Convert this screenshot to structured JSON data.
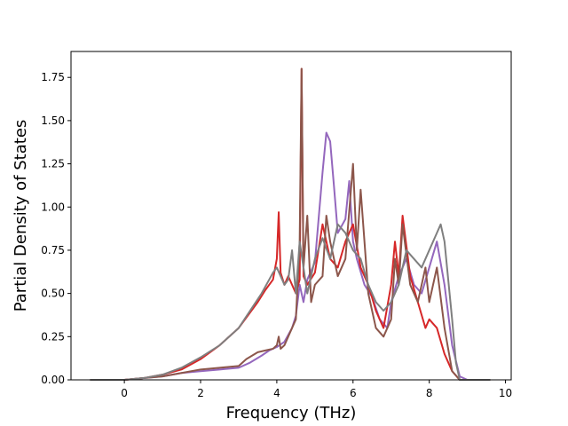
{
  "chart_data": {
    "type": "line",
    "title": "",
    "xlabel": "Frequency (THz)",
    "ylabel": "Partial Density of States",
    "xlim": [
      -1.4,
      10.15
    ],
    "ylim": [
      0.0,
      1.9
    ],
    "xticks": [
      0,
      2,
      4,
      6,
      8,
      10
    ],
    "xtick_labels": [
      "0",
      "2",
      "4",
      "6",
      "8",
      "10"
    ],
    "yticks": [
      0.0,
      0.25,
      0.5,
      0.75,
      1.0,
      1.25,
      1.5,
      1.75
    ],
    "ytick_labels": [
      "0.00",
      "0.25",
      "0.50",
      "0.75",
      "1.00",
      "1.25",
      "1.50",
      "1.75"
    ],
    "grid": false,
    "legend": false,
    "series": [
      {
        "color": "#9467bd",
        "x": [
          -0.9,
          0.0,
          0.5,
          1.0,
          1.5,
          2.0,
          2.5,
          3.0,
          3.3,
          3.6,
          3.8,
          4.0,
          4.2,
          4.4,
          4.5,
          4.6,
          4.7,
          4.8,
          5.0,
          5.2,
          5.3,
          5.4,
          5.5,
          5.6,
          5.8,
          5.9,
          6.0,
          6.1,
          6.3,
          6.5,
          6.7,
          6.9,
          7.0,
          7.2,
          7.4,
          7.6,
          7.8,
          8.0,
          8.2,
          8.4,
          8.6,
          8.8,
          9.0,
          9.6
        ],
        "y": [
          0.0,
          0.0,
          0.01,
          0.02,
          0.04,
          0.05,
          0.06,
          0.07,
          0.1,
          0.14,
          0.17,
          0.19,
          0.22,
          0.3,
          0.37,
          0.55,
          0.45,
          0.58,
          0.68,
          1.2,
          1.43,
          1.38,
          1.12,
          0.85,
          0.93,
          1.15,
          0.8,
          0.7,
          0.55,
          0.48,
          0.35,
          0.3,
          0.45,
          0.6,
          0.7,
          0.55,
          0.5,
          0.65,
          0.8,
          0.55,
          0.2,
          0.02,
          0.0,
          0.0
        ]
      },
      {
        "color": "#d62728",
        "x": [
          -0.9,
          0.0,
          0.5,
          1.0,
          1.5,
          2.0,
          2.5,
          3.0,
          3.2,
          3.5,
          3.7,
          3.9,
          4.0,
          4.05,
          4.1,
          4.2,
          4.3,
          4.4,
          4.5,
          4.6,
          4.65,
          4.7,
          4.8,
          5.0,
          5.2,
          5.4,
          5.6,
          5.8,
          6.0,
          6.2,
          6.4,
          6.6,
          6.8,
          7.0,
          7.1,
          7.2,
          7.3,
          7.5,
          7.7,
          7.9,
          8.0,
          8.2,
          8.4,
          8.6,
          8.8,
          9.6
        ],
        "y": [
          0.0,
          0.0,
          0.01,
          0.03,
          0.06,
          0.12,
          0.2,
          0.3,
          0.36,
          0.45,
          0.52,
          0.58,
          0.7,
          0.97,
          0.62,
          0.55,
          0.6,
          0.55,
          0.5,
          0.58,
          1.8,
          0.6,
          0.55,
          0.62,
          0.9,
          0.7,
          0.65,
          0.8,
          0.9,
          0.65,
          0.55,
          0.4,
          0.3,
          0.55,
          0.8,
          0.6,
          0.95,
          0.6,
          0.45,
          0.3,
          0.35,
          0.3,
          0.15,
          0.05,
          0.0,
          0.0
        ]
      },
      {
        "color": "#8c564b",
        "x": [
          -0.9,
          0.0,
          0.5,
          1.0,
          1.5,
          2.0,
          2.5,
          3.0,
          3.2,
          3.5,
          3.7,
          3.9,
          4.0,
          4.05,
          4.1,
          4.2,
          4.3,
          4.4,
          4.5,
          4.6,
          4.65,
          4.7,
          4.8,
          4.9,
          5.0,
          5.2,
          5.3,
          5.4,
          5.6,
          5.8,
          6.0,
          6.1,
          6.2,
          6.4,
          6.6,
          6.8,
          7.0,
          7.1,
          7.2,
          7.3,
          7.5,
          7.7,
          7.9,
          8.0,
          8.2,
          8.4,
          8.6,
          8.8,
          9.6
        ],
        "y": [
          0.0,
          0.0,
          0.01,
          0.02,
          0.04,
          0.06,
          0.07,
          0.08,
          0.12,
          0.16,
          0.17,
          0.18,
          0.2,
          0.25,
          0.18,
          0.2,
          0.25,
          0.3,
          0.35,
          0.8,
          1.8,
          0.65,
          0.95,
          0.45,
          0.55,
          0.6,
          0.95,
          0.8,
          0.6,
          0.7,
          1.25,
          0.75,
          1.1,
          0.5,
          0.3,
          0.25,
          0.35,
          0.7,
          0.55,
          0.9,
          0.55,
          0.45,
          0.65,
          0.45,
          0.65,
          0.3,
          0.05,
          0.0,
          0.0
        ]
      },
      {
        "color": "#7f7f7f",
        "x": [
          -0.9,
          0.0,
          0.5,
          1.0,
          1.5,
          2.0,
          2.5,
          3.0,
          3.3,
          3.6,
          3.8,
          3.9,
          4.0,
          4.1,
          4.2,
          4.3,
          4.4,
          4.5,
          4.6,
          4.7,
          4.8,
          5.0,
          5.2,
          5.4,
          5.6,
          5.8,
          6.0,
          6.2,
          6.4,
          6.6,
          6.8,
          7.0,
          7.2,
          7.4,
          7.6,
          7.8,
          8.0,
          8.2,
          8.3,
          8.4,
          8.6,
          8.7,
          8.8,
          9.6
        ],
        "y": [
          0.0,
          0.0,
          0.01,
          0.03,
          0.07,
          0.13,
          0.2,
          0.3,
          0.4,
          0.5,
          0.58,
          0.62,
          0.65,
          0.6,
          0.55,
          0.58,
          0.75,
          0.5,
          0.8,
          0.65,
          0.5,
          0.7,
          0.82,
          0.7,
          0.9,
          0.85,
          0.75,
          0.7,
          0.55,
          0.45,
          0.4,
          0.45,
          0.55,
          0.75,
          0.7,
          0.65,
          0.75,
          0.85,
          0.9,
          0.8,
          0.35,
          0.1,
          0.0,
          0.0
        ]
      }
    ]
  }
}
